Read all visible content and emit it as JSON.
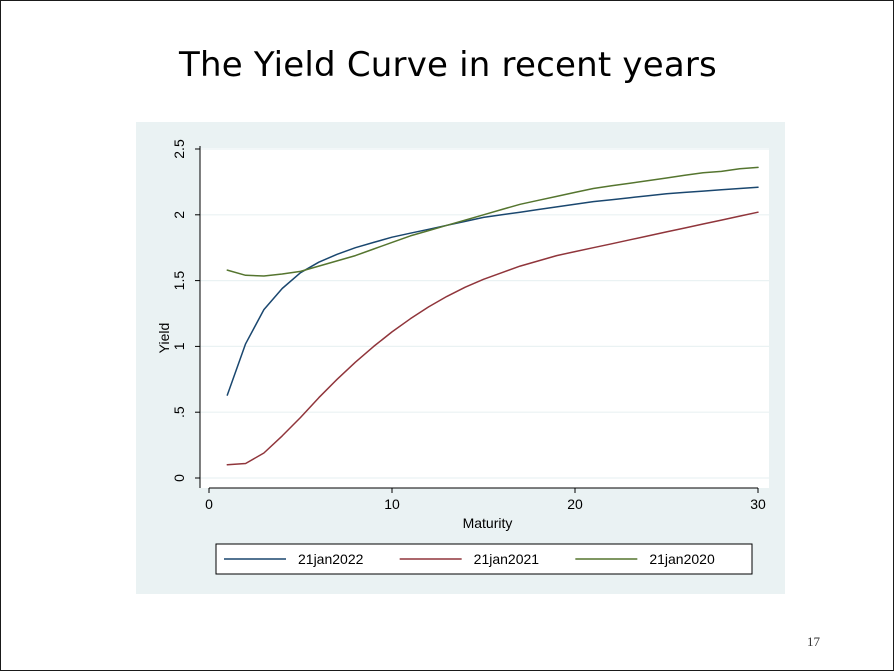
{
  "slide": {
    "title": "The Yield Curve in recent years",
    "page_number": "17"
  },
  "chart_data": {
    "type": "line",
    "title": "",
    "xlabel": "Maturity",
    "ylabel": "Yield",
    "xlim": [
      0,
      30
    ],
    "ylim": [
      0,
      2.5
    ],
    "x_ticks": [
      0,
      10,
      20,
      30
    ],
    "x_tick_labels": [
      "0",
      "10",
      "20",
      "30"
    ],
    "y_ticks": [
      0,
      0.5,
      1,
      1.5,
      2,
      2.5
    ],
    "y_tick_labels": [
      "0",
      ".5",
      "1",
      "1.5",
      "2",
      "2.5"
    ],
    "grid": true,
    "legend_position": "bottom",
    "background_color": "#eaf2f3",
    "plot_background_color": "#ffffff",
    "x": [
      1,
      2,
      3,
      4,
      5,
      6,
      7,
      8,
      9,
      10,
      11,
      12,
      13,
      14,
      15,
      16,
      17,
      18,
      19,
      20,
      21,
      22,
      23,
      24,
      25,
      26,
      27,
      28,
      29,
      30
    ],
    "series": [
      {
        "name": "21jan2022",
        "color": "#1a476f",
        "values": [
          0.63,
          1.02,
          1.28,
          1.44,
          1.56,
          1.64,
          1.7,
          1.75,
          1.79,
          1.83,
          1.86,
          1.89,
          1.92,
          1.95,
          1.98,
          2.0,
          2.02,
          2.04,
          2.06,
          2.08,
          2.1,
          2.115,
          2.13,
          2.145,
          2.16,
          2.17,
          2.18,
          2.19,
          2.2,
          2.21
        ]
      },
      {
        "name": "21jan2021",
        "color": "#90353b",
        "values": [
          0.1,
          0.11,
          0.19,
          0.32,
          0.46,
          0.61,
          0.75,
          0.88,
          1.0,
          1.11,
          1.21,
          1.3,
          1.38,
          1.45,
          1.51,
          1.56,
          1.61,
          1.65,
          1.69,
          1.72,
          1.75,
          1.78,
          1.81,
          1.84,
          1.87,
          1.9,
          1.93,
          1.96,
          1.99,
          2.02
        ]
      },
      {
        "name": "21jan2020",
        "color": "#55752f",
        "values": [
          1.58,
          1.54,
          1.535,
          1.55,
          1.57,
          1.61,
          1.65,
          1.69,
          1.74,
          1.79,
          1.84,
          1.88,
          1.92,
          1.96,
          2.0,
          2.04,
          2.08,
          2.11,
          2.14,
          2.17,
          2.2,
          2.22,
          2.24,
          2.26,
          2.28,
          2.3,
          2.32,
          2.33,
          2.35,
          2.36
        ]
      }
    ]
  }
}
